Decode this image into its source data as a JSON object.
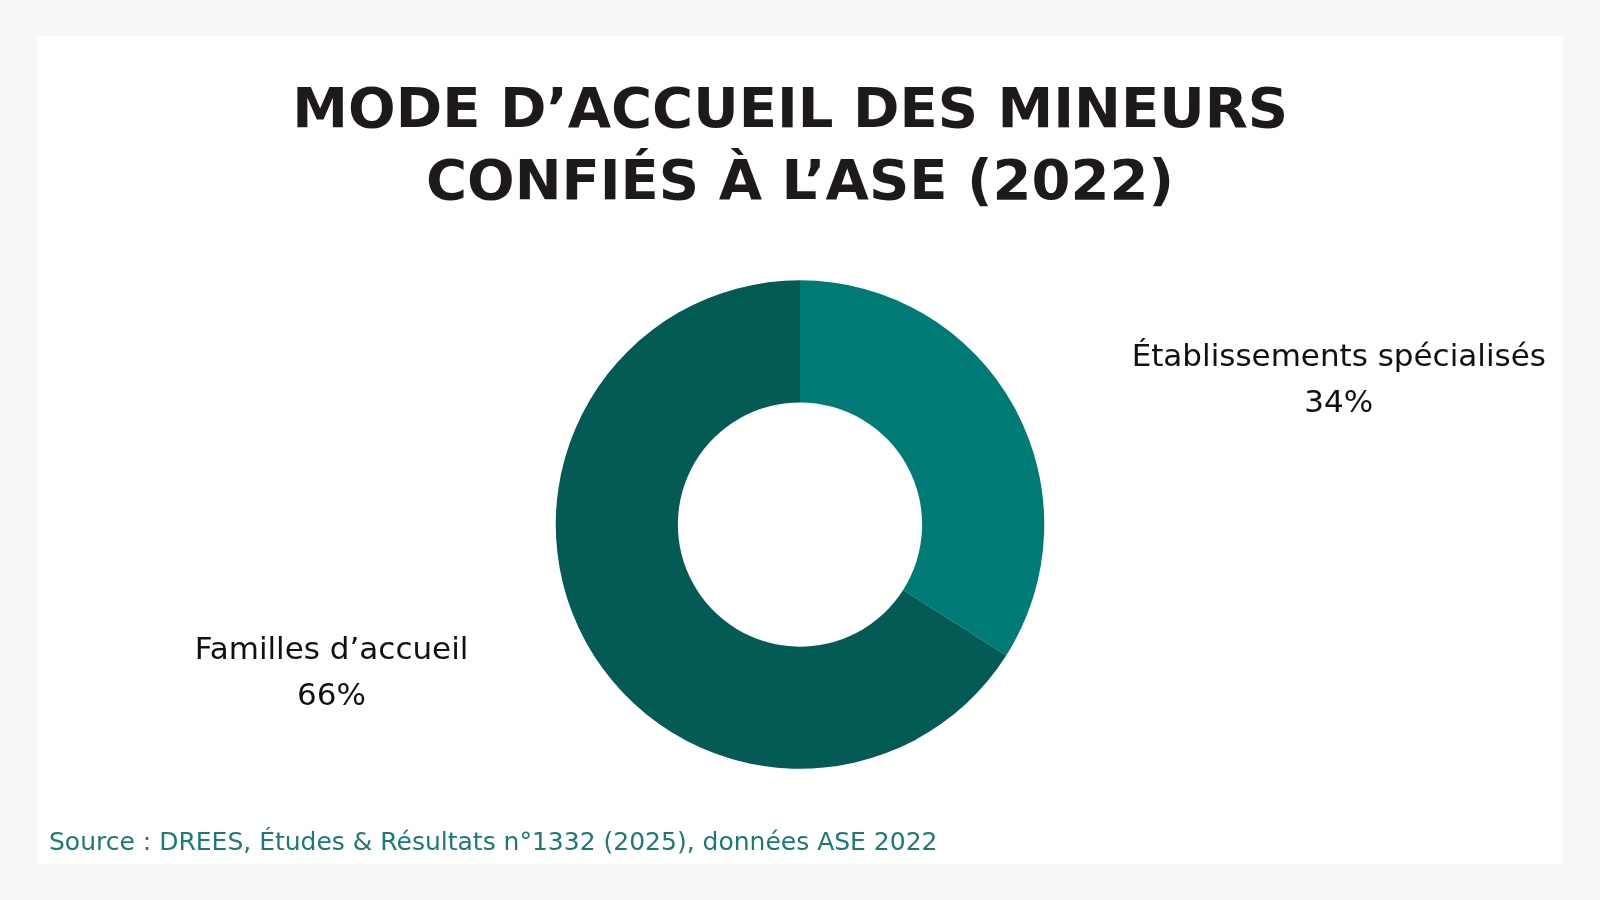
{
  "chart_data": {
    "type": "donut",
    "title": "MODE D’ACCUEIL DES MINEURS CONFIÉS À L’ASE (2022)",
    "categories": [
      "Établissements spécialisés",
      "Familles d’accueil"
    ],
    "values": [
      34,
      66
    ],
    "value_labels": [
      "34%",
      "66%"
    ],
    "colors": [
      "#007a74",
      "#045a55"
    ],
    "legend": false,
    "annotations": [
      "Source : DREES, Études & Résultats n°1332 (2025), données ASE 2022"
    ]
  }
}
